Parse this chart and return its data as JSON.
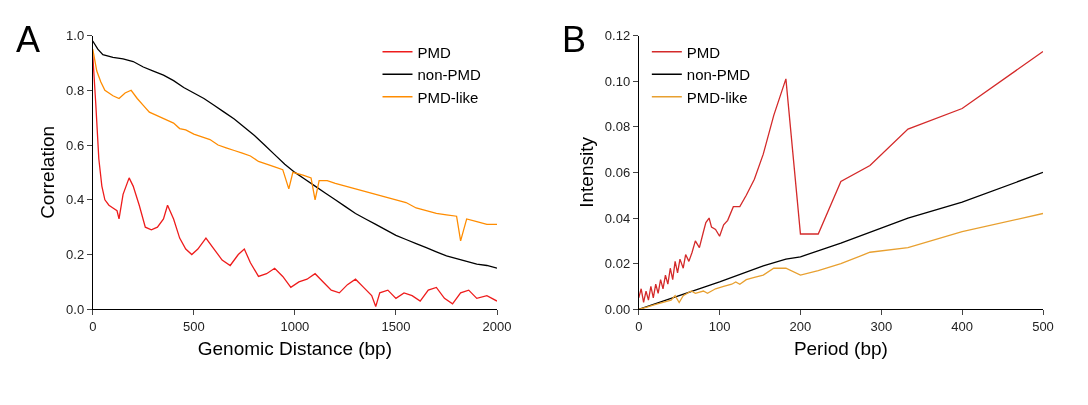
{
  "chart_data": [
    {
      "type": "line",
      "title": "A",
      "xlabel": "Genomic Distance (bp)",
      "ylabel": "Correlation",
      "xlim": [
        0,
        2000
      ],
      "xticks": [
        0,
        500,
        1000,
        1500,
        2000
      ],
      "ylim": [
        0,
        1.0
      ],
      "yticks": [
        {
          "value": 0,
          "label": "0.0"
        },
        0.2,
        0.4,
        0.6,
        0.8,
        {
          "value": 1,
          "label": "1.0"
        }
      ],
      "legend": "top right",
      "marker": "none",
      "line_style": "solid",
      "series": [
        {
          "name": "PMD",
          "color": "#ee1c1c",
          "x": [
            0,
            15,
            30,
            45,
            60,
            80,
            100,
            120,
            130,
            150,
            180,
            200,
            230,
            260,
            290,
            320,
            350,
            370,
            400,
            430,
            460,
            490,
            520,
            560,
            600,
            640,
            680,
            720,
            750,
            780,
            820,
            860,
            900,
            940,
            980,
            1020,
            1060,
            1100,
            1140,
            1180,
            1220,
            1260,
            1300,
            1340,
            1380,
            1400,
            1420,
            1460,
            1500,
            1540,
            1580,
            1620,
            1660,
            1700,
            1740,
            1780,
            1820,
            1860,
            1900,
            1950,
            2000
          ],
          "values": [
            0.93,
            0.75,
            0.55,
            0.45,
            0.4,
            0.38,
            0.37,
            0.36,
            0.33,
            0.42,
            0.48,
            0.45,
            0.38,
            0.3,
            0.29,
            0.3,
            0.33,
            0.38,
            0.33,
            0.26,
            0.22,
            0.2,
            0.22,
            0.26,
            0.22,
            0.18,
            0.16,
            0.2,
            0.22,
            0.17,
            0.12,
            0.13,
            0.15,
            0.12,
            0.08,
            0.1,
            0.11,
            0.13,
            0.1,
            0.07,
            0.06,
            0.09,
            0.11,
            0.08,
            0.05,
            0.01,
            0.06,
            0.07,
            0.04,
            0.06,
            0.05,
            0.03,
            0.07,
            0.08,
            0.04,
            0.02,
            0.06,
            0.07,
            0.04,
            0.05,
            0.03
          ]
        },
        {
          "name": "non-PMD",
          "color": "#000000",
          "x": [
            0,
            25,
            50,
            100,
            150,
            200,
            250,
            300,
            350,
            400,
            450,
            500,
            550,
            600,
            650,
            700,
            750,
            800,
            850,
            900,
            950,
            1000,
            1050,
            1100,
            1150,
            1200,
            1250,
            1300,
            1350,
            1400,
            1450,
            1500,
            1550,
            1600,
            1650,
            1700,
            1750,
            1800,
            1850,
            1900,
            1950,
            2000
          ],
          "values": [
            0.98,
            0.95,
            0.93,
            0.92,
            0.915,
            0.905,
            0.885,
            0.87,
            0.855,
            0.835,
            0.81,
            0.79,
            0.77,
            0.745,
            0.72,
            0.695,
            0.665,
            0.635,
            0.6,
            0.565,
            0.53,
            0.5,
            0.475,
            0.45,
            0.425,
            0.4,
            0.375,
            0.35,
            0.33,
            0.31,
            0.29,
            0.27,
            0.255,
            0.24,
            0.225,
            0.21,
            0.195,
            0.185,
            0.175,
            0.165,
            0.16,
            0.15
          ]
        },
        {
          "name": "PMD-like",
          "color": "#ff8c00",
          "x": [
            0,
            20,
            40,
            60,
            80,
            100,
            130,
            160,
            190,
            220,
            250,
            280,
            310,
            340,
            370,
            400,
            430,
            460,
            500,
            540,
            580,
            620,
            660,
            700,
            740,
            780,
            820,
            860,
            900,
            940,
            970,
            990,
            1040,
            1080,
            1100,
            1120,
            1160,
            1200,
            1250,
            1300,
            1350,
            1400,
            1450,
            1500,
            1550,
            1600,
            1650,
            1700,
            1750,
            1800,
            1820,
            1850,
            1900,
            1950,
            2000
          ],
          "values": [
            0.95,
            0.87,
            0.83,
            0.8,
            0.79,
            0.78,
            0.77,
            0.79,
            0.8,
            0.77,
            0.745,
            0.72,
            0.71,
            0.7,
            0.69,
            0.68,
            0.66,
            0.655,
            0.64,
            0.63,
            0.62,
            0.6,
            0.59,
            0.58,
            0.57,
            0.56,
            0.54,
            0.53,
            0.52,
            0.51,
            0.44,
            0.5,
            0.49,
            0.48,
            0.4,
            0.47,
            0.47,
            0.46,
            0.45,
            0.44,
            0.43,
            0.42,
            0.41,
            0.4,
            0.39,
            0.37,
            0.36,
            0.35,
            0.345,
            0.34,
            0.25,
            0.33,
            0.32,
            0.31,
            0.31
          ]
        }
      ]
    },
    {
      "type": "line",
      "title": "B",
      "xlabel": "Period (bp)",
      "ylabel": "Intensity",
      "xlim": [
        0,
        500
      ],
      "xticks": [
        0,
        100,
        200,
        300,
        400,
        500
      ],
      "ylim": [
        0,
        0.12
      ],
      "yticks": [
        {
          "value": 0,
          "label": "0.00"
        },
        {
          "value": 0.02,
          "label": "0.02"
        },
        {
          "value": 0.04,
          "label": "0.04"
        },
        {
          "value": 0.06,
          "label": "0.06"
        },
        {
          "value": 0.08,
          "label": "0.08"
        },
        {
          "value": 0.1,
          "label": "0.10"
        },
        {
          "value": 0.12,
          "label": "0.12"
        }
      ],
      "legend": "top left",
      "marker": "none",
      "line_style": "solid",
      "series": [
        {
          "name": "PMD",
          "color": "#d42a2a",
          "x": [
            0,
            3,
            6,
            9,
            12,
            15,
            18,
            21,
            24,
            27,
            30,
            33,
            36,
            39,
            42,
            45,
            48,
            51,
            55,
            58,
            62,
            66,
            70,
            75,
            80,
            83,
            87,
            90,
            95,
            100,
            105,
            110,
            117,
            125,
            133,
            143,
            154,
            167,
            182,
            200,
            222,
            250,
            286,
            333,
            400,
            500
          ],
          "values": [
            0.005,
            0.009,
            0.003,
            0.008,
            0.004,
            0.01,
            0.005,
            0.011,
            0.007,
            0.013,
            0.009,
            0.015,
            0.011,
            0.018,
            0.013,
            0.021,
            0.016,
            0.022,
            0.018,
            0.024,
            0.021,
            0.025,
            0.03,
            0.027,
            0.034,
            0.038,
            0.04,
            0.036,
            0.035,
            0.032,
            0.037,
            0.039,
            0.045,
            0.045,
            0.05,
            0.057,
            0.068,
            0.085,
            0.101,
            0.033,
            0.033,
            0.056,
            0.063,
            0.079,
            0.088,
            0.113
          ]
        },
        {
          "name": "non-PMD",
          "color": "#000000",
          "x": [
            0,
            50,
            100,
            154,
            182,
            200,
            250,
            333,
            400,
            500
          ],
          "values": [
            0,
            0.006,
            0.012,
            0.019,
            0.022,
            0.023,
            0.029,
            0.04,
            0.047,
            0.06
          ]
        },
        {
          "name": "PMD-like",
          "color": "#e8a030",
          "x": [
            0,
            10,
            20,
            30,
            40,
            45,
            50,
            55,
            65,
            70,
            80,
            85,
            95,
            105,
            115,
            120,
            125,
            133,
            143,
            154,
            167,
            182,
            200,
            222,
            250,
            286,
            333,
            400,
            500
          ],
          "values": [
            0,
            0.001,
            0.002,
            0.003,
            0.004,
            0.006,
            0.003,
            0.006,
            0.008,
            0.007,
            0.008,
            0.007,
            0.009,
            0.01,
            0.011,
            0.012,
            0.011,
            0.013,
            0.014,
            0.015,
            0.018,
            0.018,
            0.015,
            0.017,
            0.02,
            0.025,
            0.027,
            0.034,
            0.042
          ]
        }
      ]
    }
  ]
}
